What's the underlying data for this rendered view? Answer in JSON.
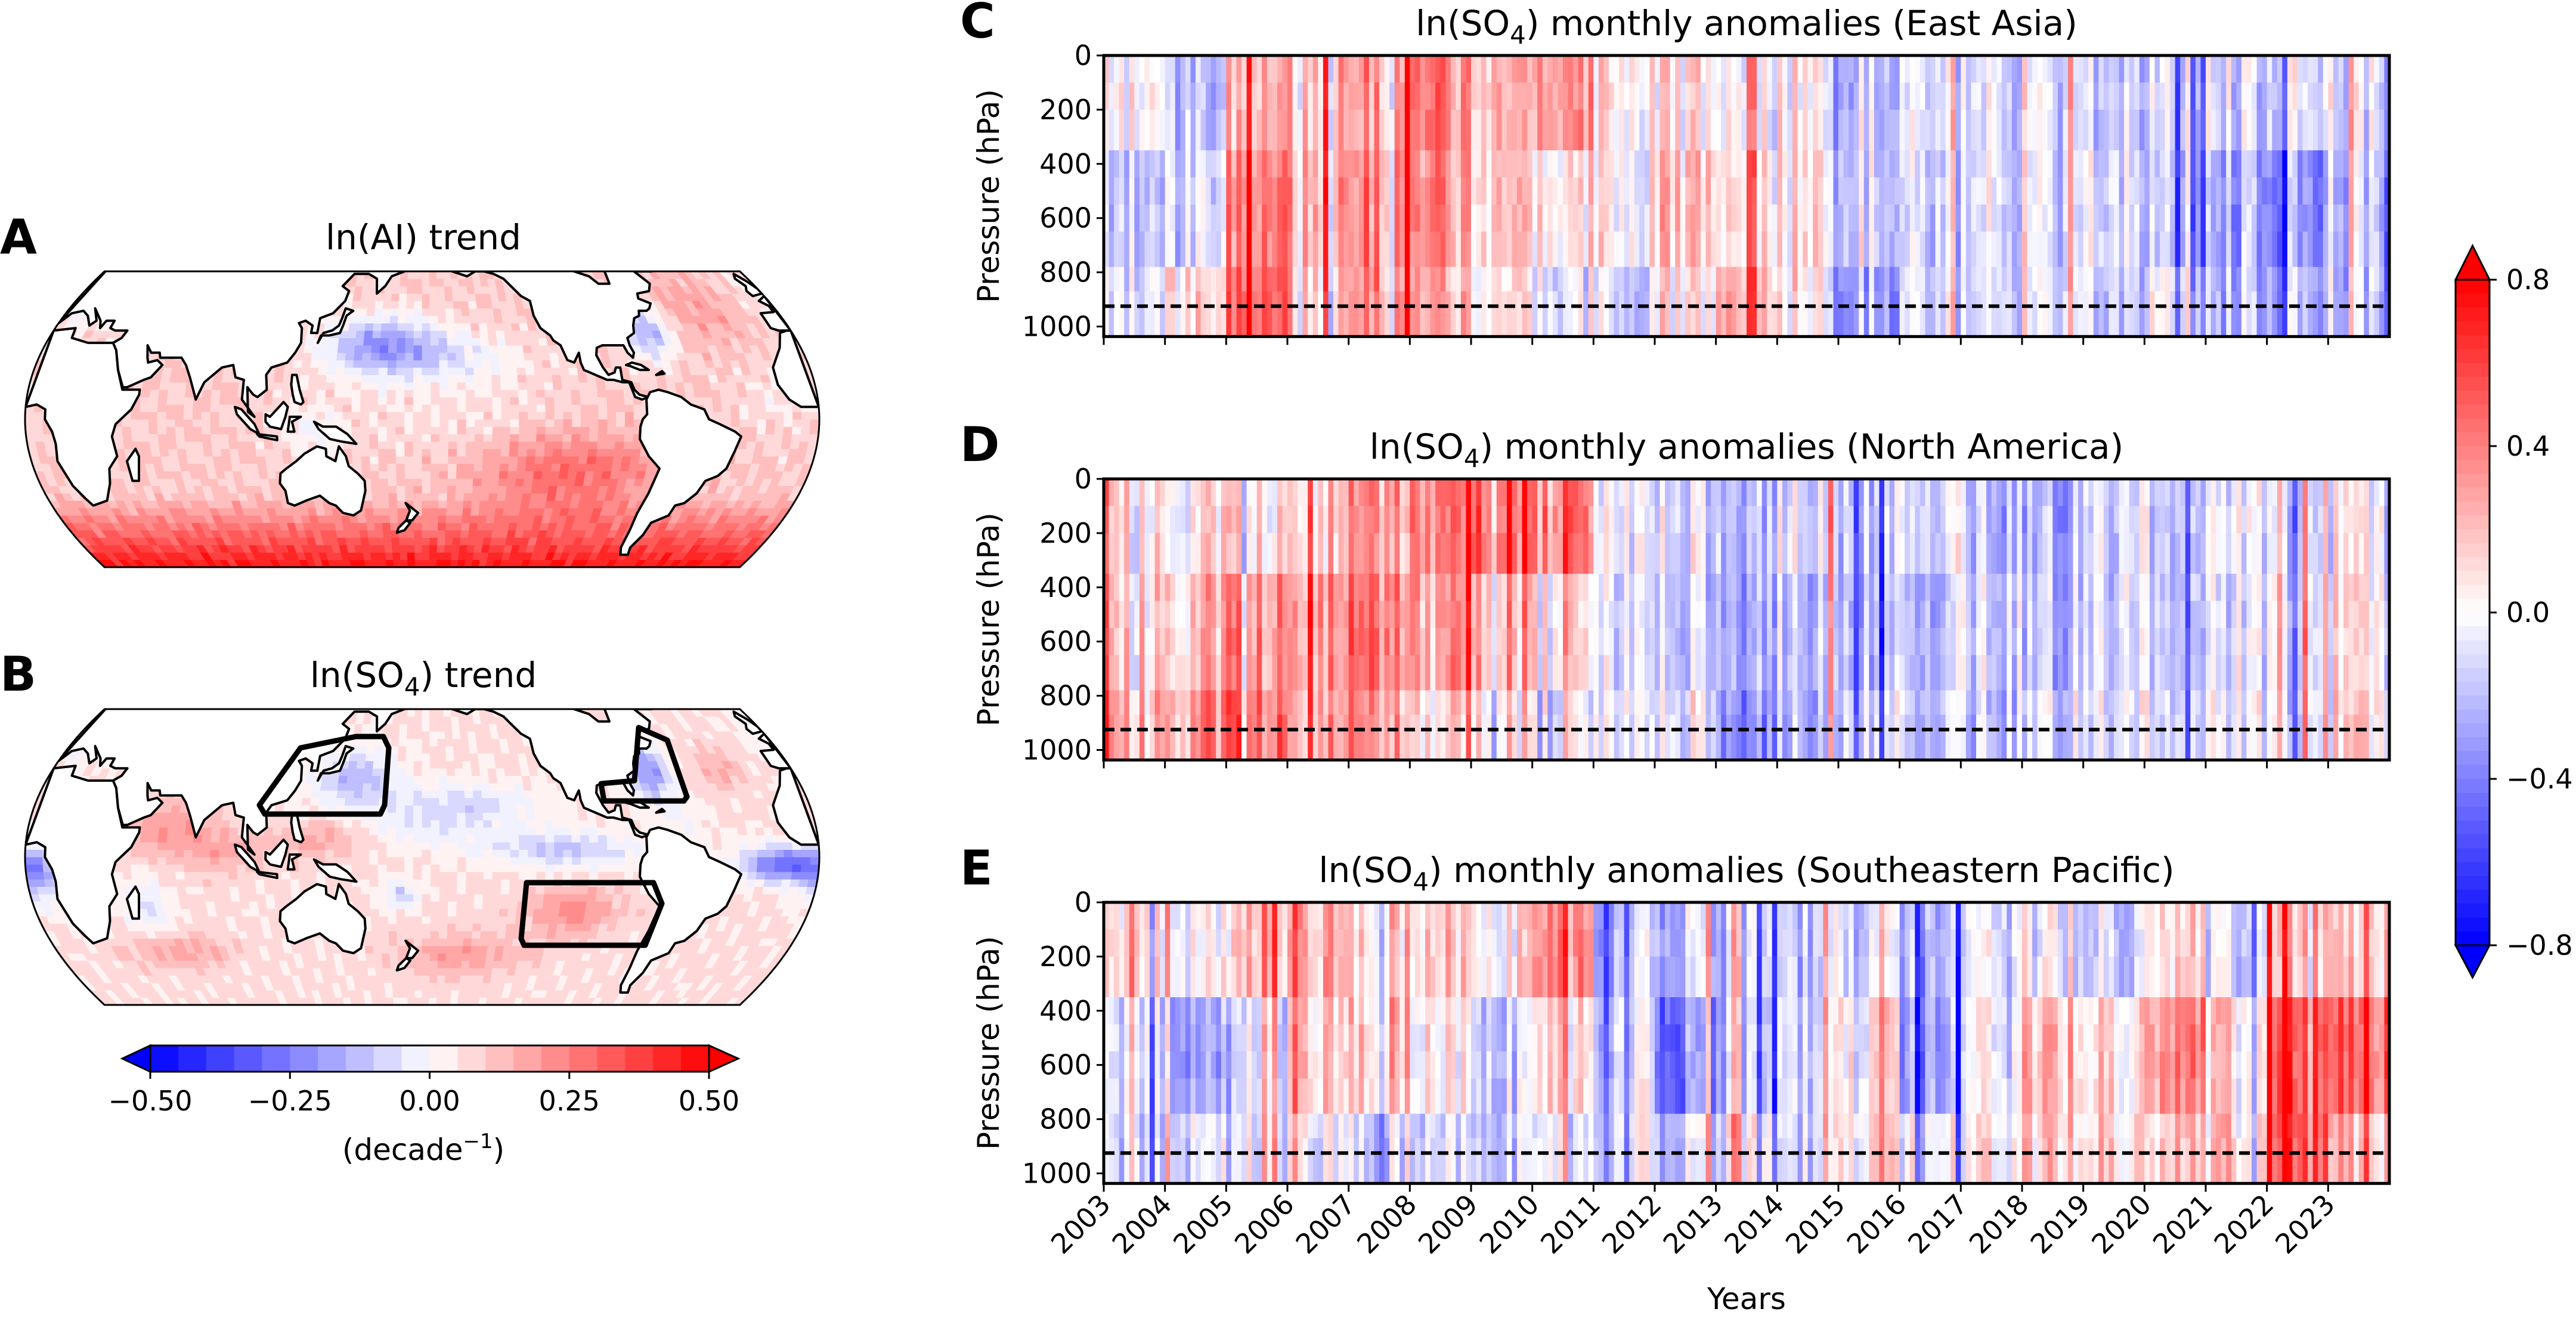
{
  "panel_a": {
    "letter": "A",
    "title": "ln(AI) trend"
  },
  "panel_b": {
    "letter": "B",
    "title": {
      "pre": "ln(SO",
      "sub": "4",
      "post": ") trend"
    }
  },
  "map_colorbar": {
    "cmap": "bwr",
    "range": [
      -0.5,
      0.5
    ],
    "step": 0.05,
    "extend": "both",
    "orientation": "horizontal",
    "ticks": [
      -0.5,
      -0.25,
      0.0,
      0.25,
      0.5
    ],
    "tick_labels": [
      "−0.50",
      "−0.25",
      "0.00",
      "0.25",
      "0.50"
    ],
    "label": {
      "pre": "(decade",
      "sup": "−1",
      "post": ")"
    }
  },
  "anomaly_colorbar": {
    "cmap": "bwr",
    "range": [
      -0.8,
      0.8
    ],
    "extend": "both",
    "orientation": "vertical",
    "ticks": [
      0.8,
      0.4,
      0.0,
      -0.4,
      -0.8
    ],
    "tick_labels": [
      "0.8",
      "0.4",
      "0.0",
      "−0.4",
      "−0.8"
    ]
  },
  "colors": {
    "negative": "#0000ff",
    "neutral": "#ffffff",
    "positive": "#ff0000",
    "reference_line": "#000000"
  },
  "chart_data": [
    {
      "type": "heatmap",
      "letter": "C",
      "title": {
        "pre": "ln(SO",
        "sub": "4",
        "post": ") monthly anomalies (East Asia)"
      },
      "ylabel": "Pressure (hPa)",
      "xlabel": "",
      "yticks": [
        0,
        200,
        400,
        600,
        800,
        1000
      ],
      "ytick_labels": [
        "0",
        "200",
        "400",
        "600",
        "800",
        "1000"
      ],
      "ylim": [
        1037,
        0
      ],
      "xlim": [
        2003,
        2024
      ],
      "xticks": [
        2003,
        2004,
        2005,
        2006,
        2007,
        2008,
        2009,
        2010,
        2011,
        2012,
        2013,
        2014,
        2015,
        2016,
        2017,
        2018,
        2019,
        2020,
        2021,
        2022,
        2023
      ],
      "reference_line_hPa": 925,
      "pressure_bands_hPa": [
        [
          0,
          350
        ],
        [
          350,
          780
        ],
        [
          780,
          1037
        ]
      ],
      "years": [
        2003,
        2004,
        2005,
        2006,
        2007,
        2008,
        2009,
        2010,
        2011,
        2012,
        2013,
        2014,
        2015,
        2016,
        2017,
        2018,
        2019,
        2020,
        2021,
        2022,
        2023
      ],
      "values": [
        [
          0.1,
          -0.1,
          0.0
        ],
        [
          -0.25,
          -0.15,
          0.05
        ],
        [
          0.2,
          0.35,
          0.45
        ],
        [
          0.25,
          0.3,
          0.2
        ],
        [
          0.3,
          0.35,
          0.35
        ],
        [
          0.35,
          0.3,
          0.2
        ],
        [
          0.3,
          0.25,
          0.15
        ],
        [
          0.35,
          0.1,
          -0.05
        ],
        [
          0.1,
          0.05,
          -0.1
        ],
        [
          0.05,
          0.15,
          0.05
        ],
        [
          -0.05,
          0.05,
          0.2
        ],
        [
          0.05,
          0.1,
          0.05
        ],
        [
          -0.1,
          -0.05,
          -0.2
        ],
        [
          -0.1,
          -0.15,
          -0.1
        ],
        [
          -0.15,
          -0.15,
          -0.15
        ],
        [
          -0.2,
          -0.2,
          -0.2
        ],
        [
          -0.15,
          -0.1,
          -0.15
        ],
        [
          -0.05,
          -0.1,
          0.05
        ],
        [
          -0.1,
          -0.25,
          -0.2
        ],
        [
          -0.05,
          -0.3,
          -0.2
        ],
        [
          -0.05,
          -0.15,
          -0.15
        ]
      ]
    },
    {
      "type": "heatmap",
      "letter": "D",
      "title": {
        "pre": "ln(SO",
        "sub": "4",
        "post": ") monthly anomalies (North America)"
      },
      "ylabel": "Pressure (hPa)",
      "xlabel": "",
      "yticks": [
        0,
        200,
        400,
        600,
        800,
        1000
      ],
      "ytick_labels": [
        "0",
        "200",
        "400",
        "600",
        "800",
        "1000"
      ],
      "ylim": [
        1037,
        0
      ],
      "xlim": [
        2003,
        2024
      ],
      "xticks": [
        2003,
        2004,
        2005,
        2006,
        2007,
        2008,
        2009,
        2010,
        2011,
        2012,
        2013,
        2014,
        2015,
        2016,
        2017,
        2018,
        2019,
        2020,
        2021,
        2022,
        2023
      ],
      "reference_line_hPa": 925,
      "pressure_bands_hPa": [
        [
          0,
          350
        ],
        [
          350,
          780
        ],
        [
          780,
          1037
        ]
      ],
      "years": [
        2003,
        2004,
        2005,
        2006,
        2007,
        2008,
        2009,
        2010,
        2011,
        2012,
        2013,
        2014,
        2015,
        2016,
        2017,
        2018,
        2019,
        2020,
        2021,
        2022,
        2023
      ],
      "values": [
        [
          0.05,
          0.1,
          0.2
        ],
        [
          0.05,
          0.2,
          0.3
        ],
        [
          0.1,
          0.35,
          0.45
        ],
        [
          0.2,
          0.35,
          0.3
        ],
        [
          0.3,
          0.4,
          0.3
        ],
        [
          0.4,
          0.3,
          0.1
        ],
        [
          0.3,
          0.05,
          -0.1
        ],
        [
          0.35,
          0.05,
          -0.1
        ],
        [
          -0.05,
          -0.1,
          -0.05
        ],
        [
          -0.05,
          -0.1,
          0.0
        ],
        [
          -0.15,
          -0.2,
          -0.3
        ],
        [
          -0.05,
          -0.15,
          -0.2
        ],
        [
          -0.15,
          -0.2,
          -0.1
        ],
        [
          -0.1,
          -0.2,
          -0.15
        ],
        [
          -0.2,
          -0.15,
          -0.2
        ],
        [
          -0.25,
          -0.2,
          -0.1
        ],
        [
          -0.15,
          -0.15,
          -0.1
        ],
        [
          -0.1,
          -0.1,
          -0.05
        ],
        [
          -0.05,
          -0.1,
          -0.05
        ],
        [
          -0.1,
          -0.05,
          -0.05
        ],
        [
          -0.05,
          0.0,
          0.05
        ]
      ]
    },
    {
      "type": "heatmap",
      "letter": "E",
      "title": {
        "pre": "ln(SO",
        "sub": "4",
        "post": ") monthly anomalies (Southeastern Pacific)"
      },
      "ylabel": "Pressure (hPa)",
      "xlabel": "Years",
      "yticks": [
        0,
        200,
        400,
        600,
        800,
        1000
      ],
      "ytick_labels": [
        "0",
        "200",
        "400",
        "600",
        "800",
        "1000"
      ],
      "ylim": [
        1037,
        0
      ],
      "xlim": [
        2003,
        2024
      ],
      "xticks": [
        2003,
        2004,
        2005,
        2006,
        2007,
        2008,
        2009,
        2010,
        2011,
        2012,
        2013,
        2014,
        2015,
        2016,
        2017,
        2018,
        2019,
        2020,
        2021,
        2022,
        2023
      ],
      "xtick_labels": [
        "2003",
        "2004",
        "2005",
        "2006",
        "2007",
        "2008",
        "2009",
        "2010",
        "2011",
        "2012",
        "2013",
        "2014",
        "2015",
        "2016",
        "2017",
        "2018",
        "2019",
        "2020",
        "2021",
        "2022",
        "2023"
      ],
      "reference_line_hPa": 925,
      "pressure_bands_hPa": [
        [
          0,
          350
        ],
        [
          350,
          780
        ],
        [
          780,
          1037
        ]
      ],
      "years": [
        2003,
        2004,
        2005,
        2006,
        2007,
        2008,
        2009,
        2010,
        2011,
        2012,
        2013,
        2014,
        2015,
        2016,
        2017,
        2018,
        2019,
        2020,
        2021,
        2022,
        2023
      ],
      "values": [
        [
          0.1,
          -0.1,
          -0.15
        ],
        [
          0.0,
          -0.3,
          -0.1
        ],
        [
          0.15,
          -0.15,
          -0.1
        ],
        [
          0.2,
          0.1,
          -0.05
        ],
        [
          0.15,
          0.2,
          -0.1
        ],
        [
          0.2,
          0.1,
          -0.05
        ],
        [
          0.1,
          -0.1,
          -0.1
        ],
        [
          0.35,
          0.1,
          -0.05
        ],
        [
          -0.15,
          -0.1,
          -0.05
        ],
        [
          -0.15,
          -0.35,
          -0.1
        ],
        [
          -0.2,
          -0.25,
          -0.05
        ],
        [
          -0.15,
          -0.1,
          -0.1
        ],
        [
          -0.1,
          0.05,
          0.1
        ],
        [
          -0.25,
          -0.3,
          -0.05
        ],
        [
          -0.1,
          -0.05,
          0.0
        ],
        [
          -0.05,
          0.2,
          0.15
        ],
        [
          -0.1,
          0.15,
          0.15
        ],
        [
          0.05,
          0.3,
          0.1
        ],
        [
          -0.1,
          0.1,
          0.15
        ],
        [
          0.25,
          0.6,
          0.6
        ],
        [
          0.15,
          0.45,
          0.2
        ]
      ]
    }
  ]
}
